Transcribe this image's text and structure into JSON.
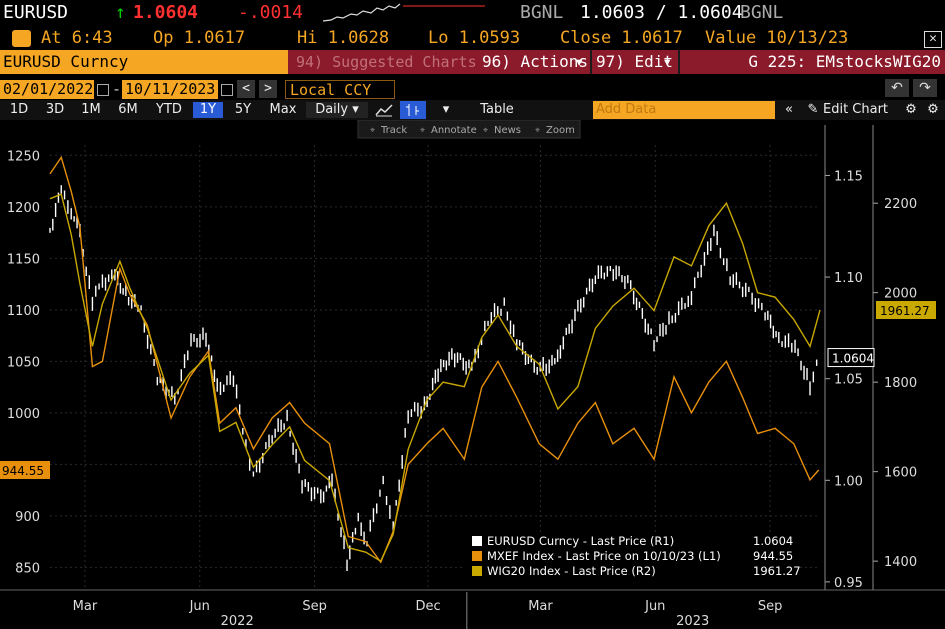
{
  "quote": {
    "ticker": "EURUSD",
    "arrow": "↑",
    "last": "1.0604",
    "change": "-.0014",
    "src1": "BGNL",
    "bid_ask": "1.0603 / 1.0604",
    "src2": "BGNL"
  },
  "ohlc": {
    "at": "At 6:43",
    "open": "Op 1.0617",
    "high": "Hi 1.0628",
    "low": "Lo 1.0593",
    "close": "Close 1.0617",
    "value": "Value 10/13/23"
  },
  "toolbar1": {
    "security": "EURUSD Curncy",
    "suggested": "94) Suggested Charts",
    "actions": "96) Actions",
    "edit": "97) Edit",
    "chart_name": "G 225: EMstocksWIG20"
  },
  "toolbar2": {
    "start_date": "02/01/2022",
    "end_date": "10/11/2023",
    "currency": "Local CCY"
  },
  "toolbar3": {
    "periods": [
      "1D",
      "3D",
      "1M",
      "6M",
      "YTD",
      "1Y",
      "5Y",
      "Max"
    ],
    "selected_period": "1Y",
    "frequency": "Daily",
    "table": "Table",
    "add_data_placeholder": "Add Data",
    "edit_chart": "Edit Chart"
  },
  "chart_tools": [
    "Track",
    "Annotate",
    "News",
    "Zoom"
  ],
  "colors": {
    "eurusd": "#ffffff",
    "mxef": "#e8900c",
    "wig20": "#c9a800",
    "accent_orange": "#f5a623",
    "accent_red": "#8b1a2a",
    "up_green": "#00d000",
    "last_red": "#ff3030"
  },
  "chart_data": {
    "type": "line",
    "axes": {
      "left_L1": {
        "ticks": [
          850,
          900,
          950,
          1000,
          1050,
          1100,
          1150,
          1200,
          1250
        ],
        "tick_labels": [
          "850",
          "900",
          "",
          "1000",
          "1050",
          "1100",
          "1150",
          "1200",
          "1250"
        ],
        "range": [
          830,
          1260
        ]
      },
      "right_R1": {
        "ticks": [
          0.95,
          1.0,
          1.05,
          1.1,
          1.15
        ],
        "tick_labels": [
          "0.95",
          "1.00",
          "1.05",
          "1.10",
          "1.15"
        ],
        "range": [
          0.947,
          1.165
        ]
      },
      "right_R2": {
        "ticks": [
          1400,
          1600,
          1800,
          2000,
          2200
        ],
        "tick_labels": [
          "1400",
          "1600",
          "1800",
          "2000",
          "2200"
        ],
        "range": [
          1340,
          2330
        ]
      }
    },
    "x_range": [
      "2022-02-01",
      "2023-10-11"
    ],
    "x_month_labels": [
      {
        "label": "Mar",
        "date": "2022-03-01"
      },
      {
        "label": "Jun",
        "date": "2022-06-01"
      },
      {
        "label": "Sep",
        "date": "2022-09-01"
      },
      {
        "label": "Dec",
        "date": "2022-12-01"
      },
      {
        "label": "Mar",
        "date": "2023-03-01"
      },
      {
        "label": "Jun",
        "date": "2023-06-01"
      },
      {
        "label": "Sep",
        "date": "2023-09-01"
      }
    ],
    "x_year_labels": [
      {
        "label": "2022",
        "date": "2022-07-01"
      },
      {
        "label": "2023",
        "date": "2023-07-01"
      }
    ],
    "year_divider_date": "2023-01-01",
    "series": [
      {
        "name": "EURUSD Curncy - Last Price (R1)",
        "legend_value": "1.0604",
        "axis": "right_R1",
        "style": "bar",
        "color_key": "eurusd",
        "points": [
          [
            "2022-02-01",
            1.123
          ],
          [
            "2022-02-10",
            1.142
          ],
          [
            "2022-02-18",
            1.133
          ],
          [
            "2022-02-25",
            1.121
          ],
          [
            "2022-03-07",
            1.088
          ],
          [
            "2022-03-15",
            1.098
          ],
          [
            "2022-03-25",
            1.1
          ],
          [
            "2022-04-05",
            1.09
          ],
          [
            "2022-04-15",
            1.083
          ],
          [
            "2022-04-28",
            1.05
          ],
          [
            "2022-05-12",
            1.04
          ],
          [
            "2022-05-25",
            1.068
          ],
          [
            "2022-06-06",
            1.071
          ],
          [
            "2022-06-15",
            1.045
          ],
          [
            "2022-06-28",
            1.05
          ],
          [
            "2022-07-08",
            1.018
          ],
          [
            "2022-07-14",
            1.002
          ],
          [
            "2022-07-29",
            1.022
          ],
          [
            "2022-08-10",
            1.03
          ],
          [
            "2022-08-22",
            0.998
          ],
          [
            "2022-09-06",
            0.992
          ],
          [
            "2022-09-15",
            0.999
          ],
          [
            "2022-09-27",
            0.96
          ],
          [
            "2022-10-06",
            0.98
          ],
          [
            "2022-10-13",
            0.97
          ],
          [
            "2022-10-26",
            1.0
          ],
          [
            "2022-11-03",
            0.976
          ],
          [
            "2022-11-15",
            1.033
          ],
          [
            "2022-11-28",
            1.036
          ],
          [
            "2022-12-09",
            1.053
          ],
          [
            "2022-12-20",
            1.062
          ],
          [
            "2023-01-05",
            1.055
          ],
          [
            "2023-01-18",
            1.079
          ],
          [
            "2023-01-31",
            1.086
          ],
          [
            "2023-02-10",
            1.068
          ],
          [
            "2023-02-24",
            1.056
          ],
          [
            "2023-03-08",
            1.055
          ],
          [
            "2023-03-17",
            1.065
          ],
          [
            "2023-03-31",
            1.084
          ],
          [
            "2023-04-14",
            1.1
          ],
          [
            "2023-04-26",
            1.104
          ],
          [
            "2023-05-10",
            1.098
          ],
          [
            "2023-05-31",
            1.068
          ],
          [
            "2023-06-12",
            1.078
          ],
          [
            "2023-06-30",
            1.091
          ],
          [
            "2023-07-13",
            1.114
          ],
          [
            "2023-07-18",
            1.122
          ],
          [
            "2023-07-31",
            1.1
          ],
          [
            "2023-08-15",
            1.092
          ],
          [
            "2023-08-28",
            1.082
          ],
          [
            "2023-09-08",
            1.07
          ],
          [
            "2023-09-21",
            1.065
          ],
          [
            "2023-10-03",
            1.047
          ],
          [
            "2023-10-11",
            1.0604
          ]
        ]
      },
      {
        "name": "MXEF Index - Last Price on 10/10/23 (L1)",
        "legend_value": "944.55",
        "axis": "left_L1",
        "style": "line",
        "color_key": "mxef",
        "points": [
          [
            "2022-02-01",
            1232
          ],
          [
            "2022-02-10",
            1248
          ],
          [
            "2022-02-18",
            1215
          ],
          [
            "2022-02-25",
            1180
          ],
          [
            "2022-03-07",
            1045
          ],
          [
            "2022-03-15",
            1050
          ],
          [
            "2022-03-29",
            1140
          ],
          [
            "2022-04-06",
            1115
          ],
          [
            "2022-04-20",
            1085
          ],
          [
            "2022-05-09",
            995
          ],
          [
            "2022-05-24",
            1035
          ],
          [
            "2022-06-08",
            1060
          ],
          [
            "2022-06-17",
            990
          ],
          [
            "2022-06-30",
            1005
          ],
          [
            "2022-07-14",
            965
          ],
          [
            "2022-07-29",
            995
          ],
          [
            "2022-08-12",
            1010
          ],
          [
            "2022-08-24",
            990
          ],
          [
            "2022-09-13",
            970
          ],
          [
            "2022-09-28",
            880
          ],
          [
            "2022-10-12",
            875
          ],
          [
            "2022-10-24",
            855
          ],
          [
            "2022-11-03",
            885
          ],
          [
            "2022-11-15",
            950
          ],
          [
            "2022-11-30",
            970
          ],
          [
            "2022-12-13",
            985
          ],
          [
            "2022-12-30",
            955
          ],
          [
            "2023-01-13",
            1025
          ],
          [
            "2023-01-26",
            1050
          ],
          [
            "2023-02-10",
            1015
          ],
          [
            "2023-02-28",
            970
          ],
          [
            "2023-03-15",
            955
          ],
          [
            "2023-03-31",
            990
          ],
          [
            "2023-04-14",
            1010
          ],
          [
            "2023-04-28",
            970
          ],
          [
            "2023-05-15",
            985
          ],
          [
            "2023-05-31",
            955
          ],
          [
            "2023-06-16",
            1035
          ],
          [
            "2023-06-30",
            1000
          ],
          [
            "2023-07-14",
            1030
          ],
          [
            "2023-07-28",
            1050
          ],
          [
            "2023-08-10",
            1015
          ],
          [
            "2023-08-22",
            980
          ],
          [
            "2023-09-05",
            985
          ],
          [
            "2023-09-20",
            970
          ],
          [
            "2023-10-03",
            935
          ],
          [
            "2023-10-10",
            944.55
          ]
        ]
      },
      {
        "name": "WIG20 Index - Last Price (R2)",
        "legend_value": "1961.27",
        "axis": "right_R2",
        "style": "line",
        "color_key": "wig20",
        "points": [
          [
            "2022-02-01",
            2210
          ],
          [
            "2022-02-10",
            2220
          ],
          [
            "2022-02-18",
            2130
          ],
          [
            "2022-02-25",
            2020
          ],
          [
            "2022-03-07",
            1880
          ],
          [
            "2022-03-15",
            1975
          ],
          [
            "2022-03-29",
            2070
          ],
          [
            "2022-04-06",
            2010
          ],
          [
            "2022-04-20",
            1920
          ],
          [
            "2022-05-09",
            1760
          ],
          [
            "2022-05-24",
            1820
          ],
          [
            "2022-06-08",
            1860
          ],
          [
            "2022-06-17",
            1690
          ],
          [
            "2022-06-30",
            1710
          ],
          [
            "2022-07-14",
            1610
          ],
          [
            "2022-07-29",
            1660
          ],
          [
            "2022-08-12",
            1700
          ],
          [
            "2022-08-24",
            1625
          ],
          [
            "2022-09-13",
            1580
          ],
          [
            "2022-09-28",
            1430
          ],
          [
            "2022-10-12",
            1420
          ],
          [
            "2022-10-24",
            1400
          ],
          [
            "2022-11-03",
            1460
          ],
          [
            "2022-11-15",
            1650
          ],
          [
            "2022-11-30",
            1760
          ],
          [
            "2022-12-13",
            1800
          ],
          [
            "2022-12-30",
            1790
          ],
          [
            "2023-01-13",
            1900
          ],
          [
            "2023-01-26",
            1950
          ],
          [
            "2023-02-10",
            1880
          ],
          [
            "2023-02-28",
            1840
          ],
          [
            "2023-03-15",
            1740
          ],
          [
            "2023-03-31",
            1790
          ],
          [
            "2023-04-14",
            1920
          ],
          [
            "2023-04-28",
            1970
          ],
          [
            "2023-05-15",
            2010
          ],
          [
            "2023-05-31",
            1960
          ],
          [
            "2023-06-16",
            2080
          ],
          [
            "2023-06-30",
            2060
          ],
          [
            "2023-07-14",
            2150
          ],
          [
            "2023-07-28",
            2200
          ],
          [
            "2023-08-10",
            2110
          ],
          [
            "2023-08-22",
            2000
          ],
          [
            "2023-09-05",
            1990
          ],
          [
            "2023-09-20",
            1940
          ],
          [
            "2023-10-03",
            1880
          ],
          [
            "2023-10-11",
            1961.27
          ]
        ]
      }
    ],
    "last_value_labels": {
      "left_L1": "944.55",
      "right_R1": "1.0604",
      "right_R2": "1961.27"
    }
  }
}
